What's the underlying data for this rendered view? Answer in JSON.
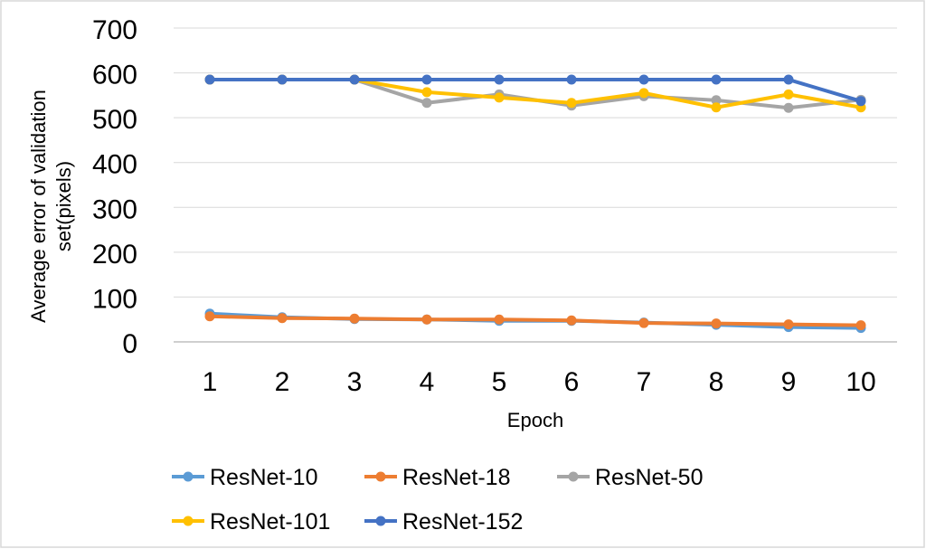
{
  "chart_data": {
    "type": "line",
    "title": "",
    "xlabel": "Epoch",
    "ylabel_lines": [
      "Average error of validation",
      "set(pixels)"
    ],
    "x": [
      1,
      2,
      3,
      4,
      5,
      6,
      7,
      8,
      9,
      10
    ],
    "x_tick_labels": [
      "1",
      "2",
      "3",
      "4",
      "5",
      "6",
      "7",
      "8",
      "9",
      "10"
    ],
    "ylim": [
      0,
      700
    ],
    "y_ticks": [
      0,
      100,
      200,
      300,
      400,
      500,
      600,
      700
    ],
    "y_tick_labels": [
      "0",
      "100",
      "200",
      "300",
      "400",
      "500",
      "600",
      "700"
    ],
    "grid": "horizontal",
    "legend_position": "bottom",
    "series": [
      {
        "name": "ResNet-10",
        "color": "#5B9BD5",
        "values": [
          63,
          55,
          51,
          50,
          47,
          47,
          43,
          38,
          33,
          31
        ]
      },
      {
        "name": "ResNet-18",
        "color": "#ED7D31",
        "values": [
          57,
          53,
          52,
          50,
          50,
          48,
          42,
          41,
          39,
          37
        ]
      },
      {
        "name": "ResNet-50",
        "color": "#A5A5A5",
        "values": [
          585,
          585,
          585,
          533,
          552,
          527,
          548,
          539,
          522,
          540
        ]
      },
      {
        "name": "ResNet-101",
        "color": "#FFC000",
        "values": [
          585,
          585,
          585,
          557,
          545,
          533,
          555,
          523,
          552,
          523
        ]
      },
      {
        "name": "ResNet-152",
        "color": "#4472C4",
        "values": [
          585,
          585,
          585,
          585,
          585,
          585,
          585,
          585,
          585,
          537
        ]
      }
    ]
  }
}
